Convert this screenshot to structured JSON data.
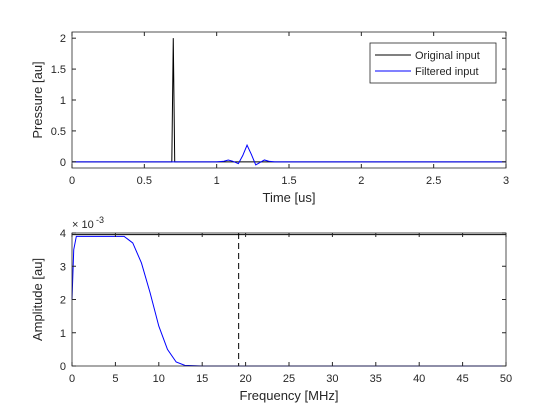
{
  "chart_data": [
    {
      "type": "line",
      "xlabel": "Time [us]",
      "ylabel": "Pressure [au]",
      "xlim": [
        0,
        3
      ],
      "ylim": [
        -0.1,
        2.1
      ],
      "xticks": [
        0,
        0.5,
        1,
        1.5,
        2,
        2.5,
        3
      ],
      "yticks": [
        0,
        0.5,
        1,
        1.5,
        2
      ],
      "legend": "northeast",
      "series": [
        {
          "name": "Original input",
          "color": "#000000",
          "x": [
            0,
            0.69,
            0.7,
            0.71,
            3
          ],
          "values": [
            0,
            0,
            2,
            0,
            0
          ]
        },
        {
          "name": "Filtered input",
          "color": "#0000ff",
          "x": [
            0,
            1.0,
            1.05,
            1.08,
            1.11,
            1.15,
            1.18,
            1.21,
            1.24,
            1.27,
            1.3,
            1.33,
            1.36,
            1.4,
            3
          ],
          "values": [
            0,
            0,
            0.01,
            0.03,
            0.01,
            -0.03,
            0.1,
            0.27,
            0.12,
            -0.05,
            -0.01,
            0.03,
            0.01,
            0,
            0
          ]
        }
      ]
    },
    {
      "type": "line",
      "xlabel": "Frequency [MHz]",
      "ylabel": "Amplitude [au]",
      "y_multiplier": "× 10",
      "y_multiplier_exponent": "-3",
      "xlim": [
        0,
        50
      ],
      "ylim": [
        0,
        0.004
      ],
      "xticks": [
        0,
        5,
        10,
        15,
        20,
        25,
        30,
        35,
        40,
        45,
        50
      ],
      "yticks": [
        0,
        {
          "value": 0.001,
          "label": "1"
        },
        {
          "value": 0.002,
          "label": "2"
        },
        {
          "value": 0.003,
          "label": "3"
        },
        {
          "value": 0.004,
          "label": "4"
        }
      ],
      "vlines": [
        {
          "x": 19.2,
          "style": "dashed",
          "color": "#000000"
        }
      ],
      "series": [
        {
          "color": "#000000",
          "x": [
            0,
            50
          ],
          "values": [
            0.00395,
            0.00395
          ]
        },
        {
          "color": "#0000ff",
          "x": [
            0,
            0.2,
            0.5,
            1,
            2,
            4,
            6,
            7,
            8,
            9,
            10,
            11,
            12,
            13,
            15,
            50
          ],
          "values": [
            0.002,
            0.0035,
            0.0039,
            0.0039,
            0.0039,
            0.0039,
            0.0039,
            0.0037,
            0.0031,
            0.0022,
            0.0012,
            0.0005,
            0.00012,
            2e-05,
            0,
            0
          ]
        }
      ]
    }
  ]
}
